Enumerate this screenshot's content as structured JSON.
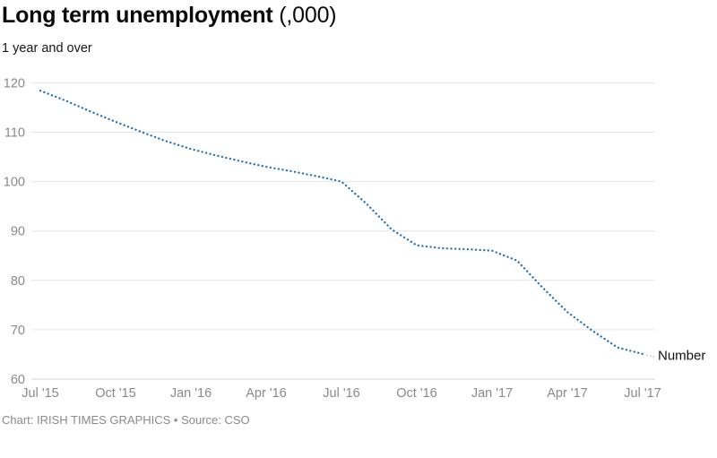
{
  "header": {
    "title": "Long term unemployment",
    "title_suffix": " (,000)",
    "subtitle": "1 year and over"
  },
  "footer": {
    "credit": "Chart: IRISH TIMES GRAPHICS • Source: CSO"
  },
  "chart_data": {
    "type": "line",
    "line_style": "dotted",
    "title": "Long term unemployment (,000)",
    "subtitle": "1 year and over",
    "series_label": "Number",
    "x": [
      "Jul 2015",
      "Aug 2015",
      "Sep 2015",
      "Oct 2015",
      "Nov 2015",
      "Dec 2015",
      "Jan 2016",
      "Feb 2016",
      "Mar 2016",
      "Apr 2016",
      "May 2016",
      "Jun 2016",
      "Jul 2016",
      "Aug 2016",
      "Sep 2016",
      "Oct 2016",
      "Nov 2016",
      "Dec 2016",
      "Jan 2017",
      "Feb 2017",
      "Mar 2017",
      "Apr 2017",
      "May 2017",
      "Jun 2017",
      "Jul 2017"
    ],
    "values": [
      118.4,
      116.4,
      114.2,
      112.1,
      110.1,
      108.2,
      106.6,
      105.3,
      104.1,
      103.0,
      102.1,
      101.1,
      100.0,
      95.5,
      90.3,
      87.1,
      86.5,
      86.3,
      86.0,
      84.0,
      78.6,
      73.6,
      69.8,
      66.4,
      65.1
    ],
    "x_tick_labels": [
      "Jul '15",
      "Oct '15",
      "Jan '16",
      "Apr '16",
      "Jul '16",
      "Oct '16",
      "Jan '17",
      "Apr '17",
      "Jul '17"
    ],
    "x_tick_every": 3,
    "y_ticks": [
      60,
      70,
      80,
      90,
      100,
      110,
      120
    ],
    "ylim": [
      60,
      120
    ],
    "grid": "horizontal",
    "legend_position": "end-of-line-label",
    "colors": {
      "line": "#1f72b4",
      "connector": "#a9c3da",
      "grid": "#e5e5e5",
      "baseline": "#d6d6d6",
      "axis_text": "#8a8a8a",
      "series_label_text": "#111111"
    }
  }
}
